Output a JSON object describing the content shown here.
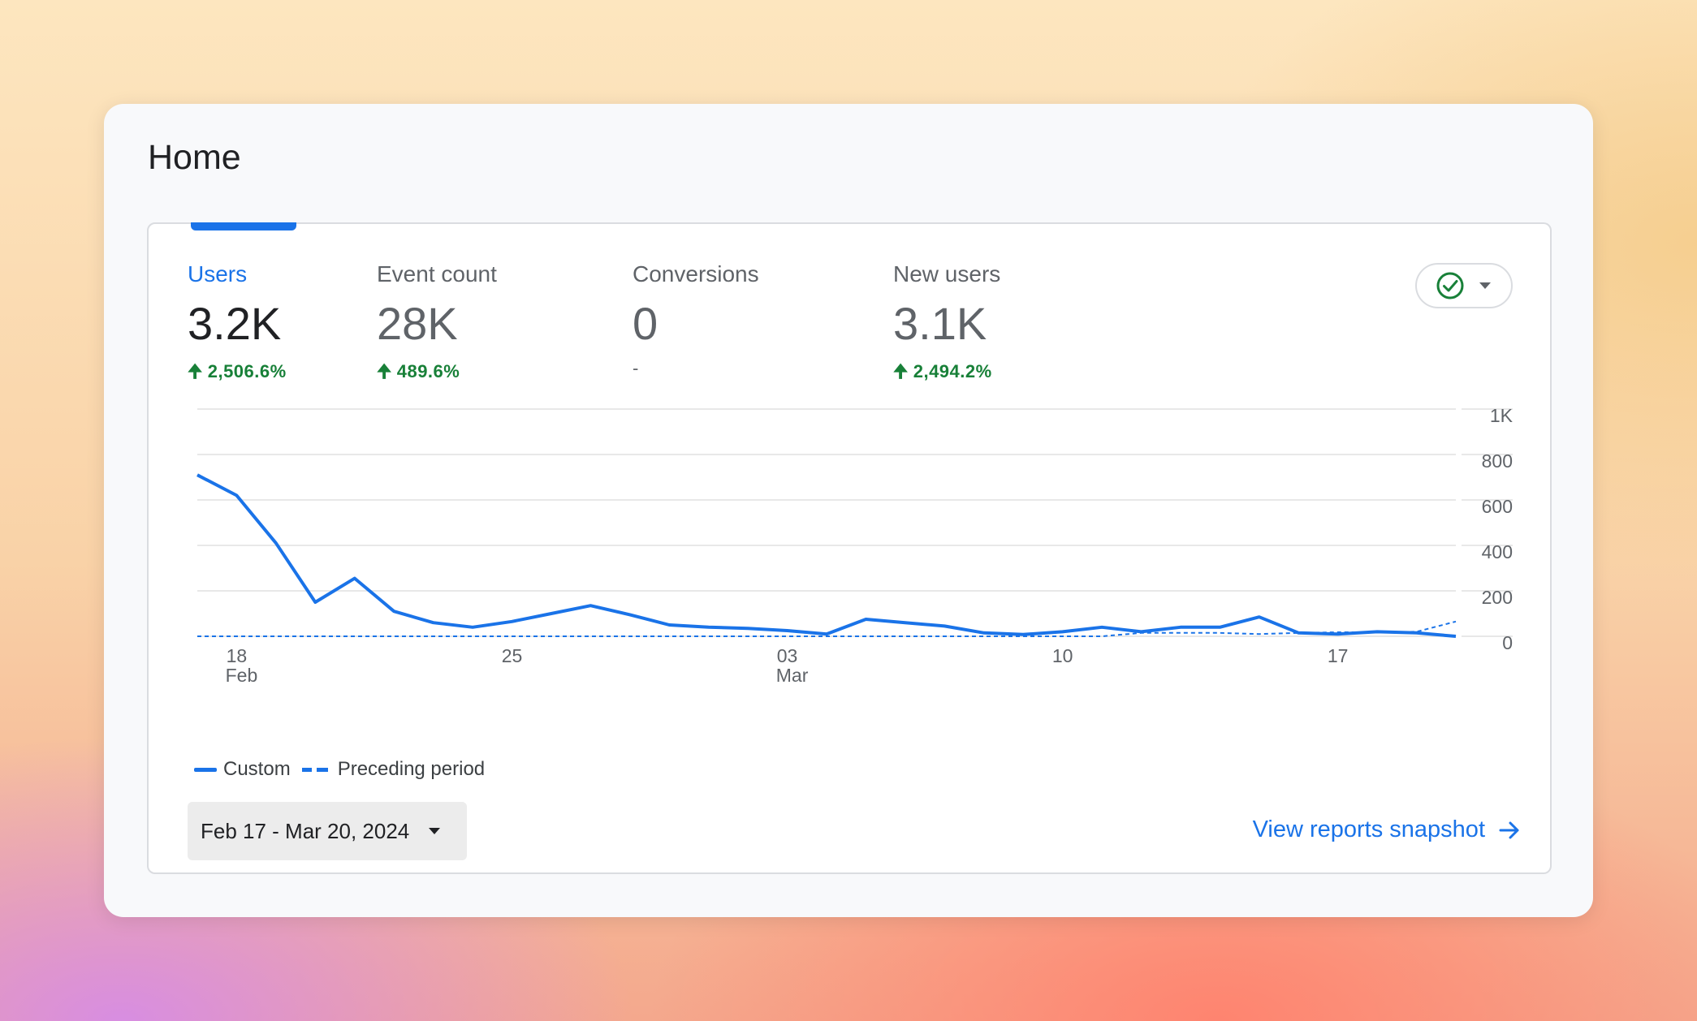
{
  "page": {
    "title": "Home"
  },
  "metrics": [
    {
      "label": "Users",
      "value": "3.2K",
      "change": "2,506.6%",
      "trend": "up"
    },
    {
      "label": "Event count",
      "value": "28K",
      "change": "489.6%",
      "trend": "up"
    },
    {
      "label": "Conversions",
      "value": "0",
      "change": "-",
      "trend": "none"
    },
    {
      "label": "New users",
      "value": "3.1K",
      "change": "2,494.2%",
      "trend": "up"
    }
  ],
  "status_button": {
    "icon": "check-circle-icon",
    "caret": "chevron-down-icon"
  },
  "chart_data": {
    "type": "line",
    "ylim": [
      0,
      1000
    ],
    "y_ticks": [
      {
        "value": 0,
        "label": "0"
      },
      {
        "value": 200,
        "label": "200"
      },
      {
        "value": 400,
        "label": "400"
      },
      {
        "value": 600,
        "label": "600"
      },
      {
        "value": 800,
        "label": "800"
      },
      {
        "value": 1000,
        "label": "1K"
      }
    ],
    "x_ticks": [
      {
        "day": 1,
        "label": "18",
        "sublabel": "Feb"
      },
      {
        "day": 8,
        "label": "25",
        "sublabel": ""
      },
      {
        "day": 15,
        "label": "03",
        "sublabel": "Mar"
      },
      {
        "day": 22,
        "label": "10",
        "sublabel": ""
      },
      {
        "day": 29,
        "label": "17",
        "sublabel": ""
      }
    ],
    "grid": true,
    "legend_position": "bottom-left",
    "series": [
      {
        "name": "Custom",
        "style": "solid",
        "color": "#1a73e8",
        "values": [
          710,
          620,
          410,
          150,
          255,
          110,
          60,
          40,
          65,
          100,
          135,
          95,
          50,
          40,
          35,
          25,
          10,
          75,
          60,
          45,
          15,
          8,
          20,
          40,
          20,
          40,
          40,
          85,
          15,
          10,
          20,
          15,
          0
        ]
      },
      {
        "name": "Preceding period",
        "style": "dashed",
        "color": "#1a73e8",
        "values": [
          0,
          0,
          0,
          0,
          0,
          0,
          0,
          0,
          0,
          0,
          0,
          0,
          0,
          0,
          0,
          0,
          0,
          0,
          0,
          0,
          0,
          0,
          0,
          0,
          15,
          15,
          15,
          10,
          15,
          18,
          18,
          20,
          65
        ]
      }
    ]
  },
  "date_range": {
    "label": "Feb 17 - Mar 20, 2024"
  },
  "view_link": {
    "label": "View reports snapshot"
  }
}
